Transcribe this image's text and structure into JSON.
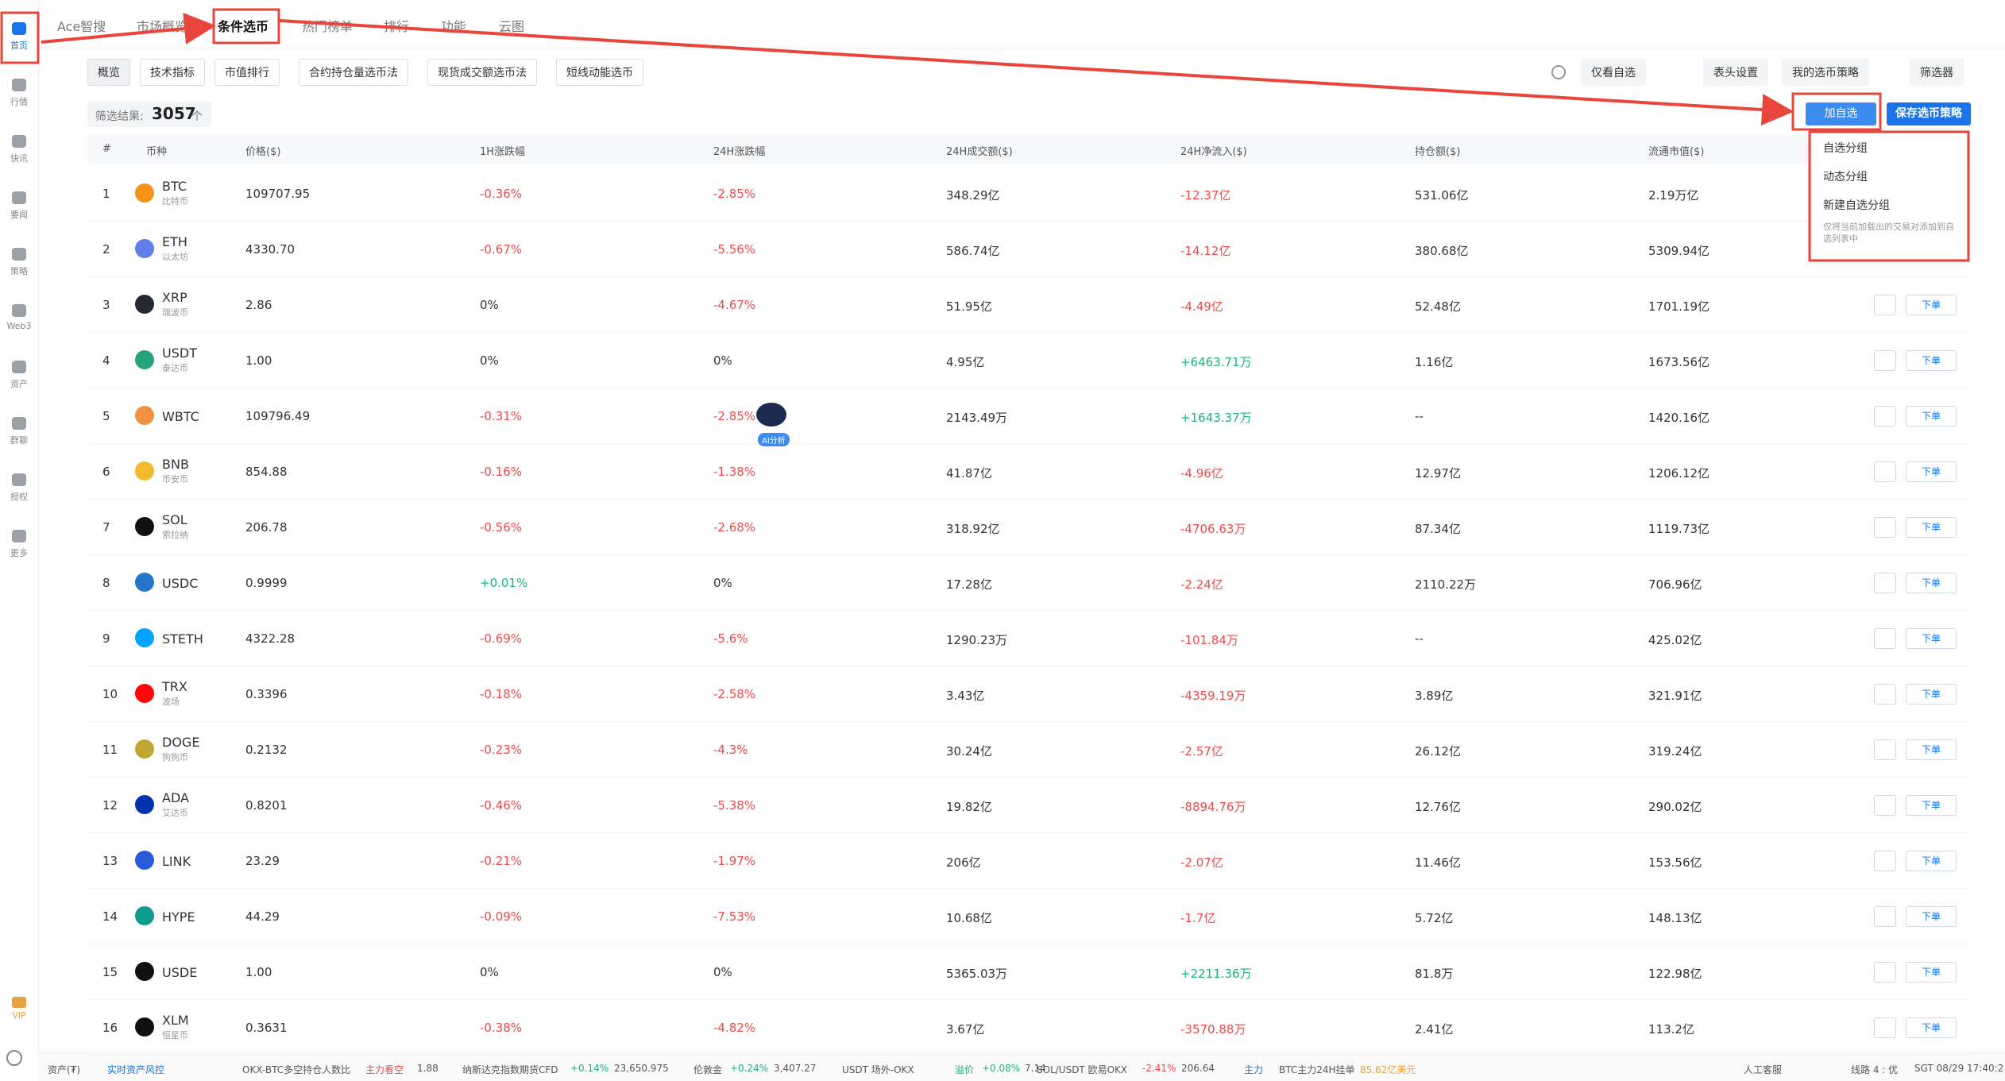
{
  "sidebar": {
    "items": [
      "首页",
      "行情",
      "快讯",
      "要闻",
      "策略",
      "Web3",
      "资产",
      "群聊",
      "授权",
      "更多"
    ],
    "vip": "VIP"
  },
  "tabs": [
    "Ace智搜",
    "市场概览",
    "条件选币",
    "热门榜单",
    "排行",
    "功能",
    "云图"
  ],
  "toolbar": {
    "left": [
      "概览",
      "技术指标",
      "市值排行",
      "合约持仓量选币法",
      "现货成交额选币法",
      "短线动能选币"
    ],
    "right": [
      "仅看自选",
      "表头设置",
      "我的选币策略",
      "筛选器"
    ]
  },
  "result": {
    "label": "筛选结果:",
    "count": "3057",
    "unit": "个"
  },
  "buttons": {
    "add_watchlist": "加自选",
    "save_strategy": "保存选币策略"
  },
  "dropdown": {
    "items": [
      "自选分组",
      "动态分组",
      "新建自选分组"
    ],
    "note": "仅将当前加载出的交易对添加到自选列表中"
  },
  "table": {
    "headers": [
      "#",
      "币种",
      "价格($)",
      "1H涨跌幅",
      "24H涨跌幅",
      "24H成交额($)",
      "24H净流入($)",
      "持仓额($)",
      "流通市值($)"
    ],
    "row_action": "下单",
    "rows": [
      {
        "rank": 1,
        "symbol": "BTC",
        "name": "比特币",
        "price": "109707.95",
        "change_1h": "-0.36%",
        "change_24h": "-2.85%",
        "volume_24h": "348.29亿",
        "net_inflow_24h": "-12.37亿",
        "open_interest": "531.06亿",
        "market_cap": "2.19万亿"
      },
      {
        "rank": 2,
        "symbol": "ETH",
        "name": "以太坊",
        "price": "4330.70",
        "change_1h": "-0.67%",
        "change_24h": "-5.56%",
        "volume_24h": "586.74亿",
        "net_inflow_24h": "-14.12亿",
        "open_interest": "380.68亿",
        "market_cap": "5309.94亿"
      },
      {
        "rank": 3,
        "symbol": "XRP",
        "name": "瑞波币",
        "price": "2.86",
        "change_1h": "0%",
        "change_24h": "-4.67%",
        "volume_24h": "51.95亿",
        "net_inflow_24h": "-4.49亿",
        "open_interest": "52.48亿",
        "market_cap": "1701.19亿"
      },
      {
        "rank": 4,
        "symbol": "USDT",
        "name": "泰达币",
        "price": "1.00",
        "change_1h": "0%",
        "change_24h": "0%",
        "volume_24h": "4.95亿",
        "net_inflow_24h": "+6463.71万",
        "open_interest": "1.16亿",
        "market_cap": "1673.56亿"
      },
      {
        "rank": 5,
        "symbol": "WBTC",
        "price": "109796.49",
        "change_1h": "-0.31%",
        "change_24h": "-2.85%",
        "volume_24h": "2143.49万",
        "net_inflow_24h": "+1643.37万",
        "open_interest": "--",
        "market_cap": "1420.16亿"
      },
      {
        "rank": 6,
        "symbol": "BNB",
        "name": "币安币",
        "price": "854.88",
        "change_1h": "-0.16%",
        "change_24h": "-1.38%",
        "volume_24h": "41.87亿",
        "net_inflow_24h": "-4.96亿",
        "open_interest": "12.97亿",
        "market_cap": "1206.12亿"
      },
      {
        "rank": 7,
        "symbol": "SOL",
        "name": "索拉纳",
        "price": "206.78",
        "change_1h": "-0.56%",
        "change_24h": "-2.68%",
        "volume_24h": "318.92亿",
        "net_inflow_24h": "-4706.63万",
        "open_interest": "87.34亿",
        "market_cap": "1119.73亿"
      },
      {
        "rank": 8,
        "symbol": "USDC",
        "price": "0.9999",
        "change_1h": "+0.01%",
        "change_24h": "0%",
        "volume_24h": "17.28亿",
        "net_inflow_24h": "-2.24亿",
        "open_interest": "2110.22万",
        "market_cap": "706.96亿"
      },
      {
        "rank": 9,
        "symbol": "STETH",
        "price": "4322.28",
        "change_1h": "-0.69%",
        "change_24h": "-5.6%",
        "volume_24h": "1290.23万",
        "net_inflow_24h": "-101.84万",
        "open_interest": "--",
        "market_cap": "425.02亿"
      },
      {
        "rank": 10,
        "symbol": "TRX",
        "name": "波场",
        "price": "0.3396",
        "change_1h": "-0.18%",
        "change_24h": "-2.58%",
        "volume_24h": "3.43亿",
        "net_inflow_24h": "-4359.19万",
        "open_interest": "3.89亿",
        "market_cap": "321.91亿"
      },
      {
        "rank": 11,
        "symbol": "DOGE",
        "name": "狗狗币",
        "price": "0.2132",
        "change_1h": "-0.23%",
        "change_24h": "-4.3%",
        "volume_24h": "30.24亿",
        "net_inflow_24h": "-2.57亿",
        "open_interest": "26.12亿",
        "market_cap": "319.24亿"
      },
      {
        "rank": 12,
        "symbol": "ADA",
        "name": "艾达币",
        "price": "0.8201",
        "change_1h": "-0.46%",
        "change_24h": "-5.38%",
        "volume_24h": "19.82亿",
        "net_inflow_24h": "-8894.76万",
        "open_interest": "12.76亿",
        "market_cap": "290.02亿"
      },
      {
        "rank": 13,
        "symbol": "LINK",
        "price": "23.29",
        "change_1h": "-0.21%",
        "change_24h": "-1.97%",
        "volume_24h": "206亿",
        "net_inflow_24h": "-2.07亿",
        "open_interest": "11.46亿",
        "market_cap": "153.56亿"
      },
      {
        "rank": 14,
        "symbol": "HYPE",
        "price": "44.29",
        "change_1h": "-0.09%",
        "change_24h": "-7.53%",
        "volume_24h": "10.68亿",
        "net_inflow_24h": "-1.7亿",
        "open_interest": "5.72亿",
        "market_cap": "148.13亿"
      },
      {
        "rank": 15,
        "symbol": "USDE",
        "price": "1.00",
        "change_1h": "0%",
        "change_24h": "0%",
        "volume_24h": "5365.03万",
        "net_inflow_24h": "+2211.36万",
        "open_interest": "81.8万",
        "market_cap": "122.98亿"
      },
      {
        "rank": 16,
        "symbol": "XLM",
        "name": "恒星币",
        "price": "0.3631",
        "change_1h": "-0.38%",
        "change_24h": "-4.82%",
        "volume_24h": "3.67亿",
        "net_inflow_24h": "-3570.88万",
        "open_interest": "2.41亿",
        "market_cap": "113.2亿"
      }
    ]
  },
  "ai_widget": "AI分析",
  "status_bar": [
    "资产(₮)",
    "实时资产风控",
    "OKX-BTC多空持仓人数比",
    "主力看空",
    "1.88",
    "纳斯达克指数期货CFD",
    "+0.14%",
    "23,650.975",
    "伦敦金",
    "+0.24%",
    "3,407.27",
    "USDT 场外-OKX",
    "溢价",
    "+0.08%",
    "7.14",
    "SOL/USDT 欧易OKX",
    "-2.41%",
    "206.64",
    "主力",
    "BTC主力24H挂单",
    "85.62亿美元",
    "人工客服",
    "线路 4 : 优",
    "SGT 08/29 17:40:2"
  ]
}
